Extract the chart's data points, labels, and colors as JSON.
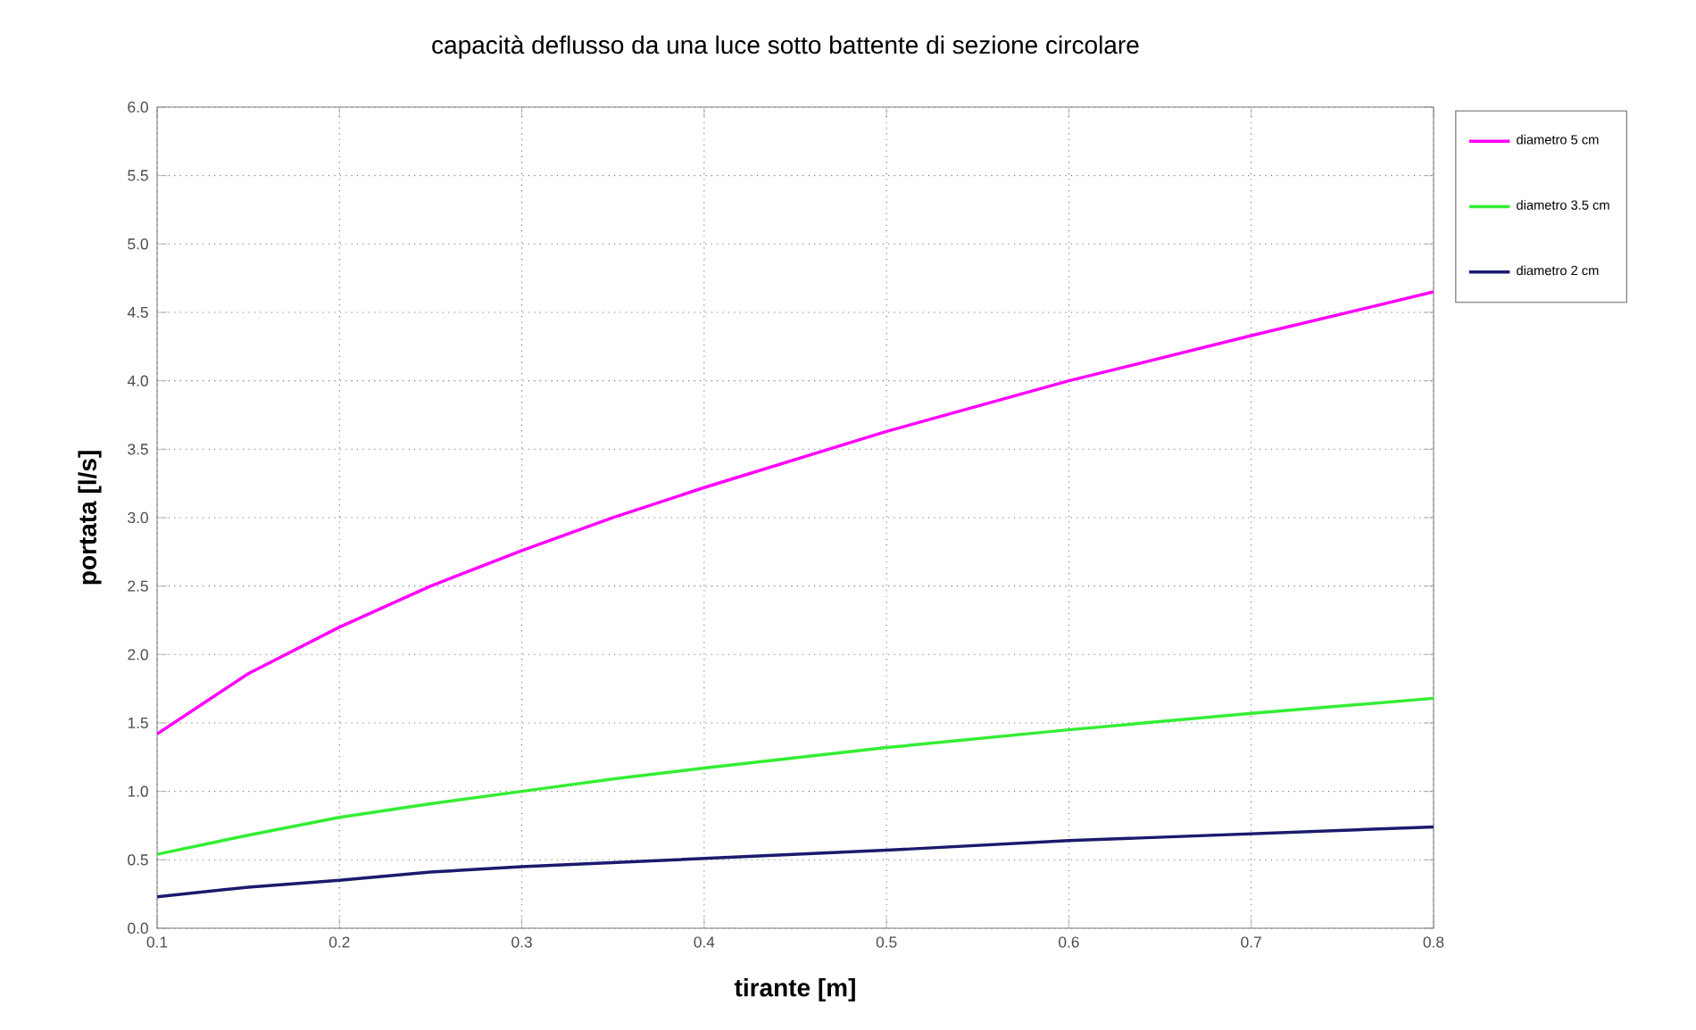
{
  "chart_data": {
    "type": "line",
    "title": "capacità deflusso da una luce sotto battente di sezione circolare",
    "xlabel": "tirante [m]",
    "ylabel": "portata [l/s]",
    "x": [
      0.1,
      0.15,
      0.2,
      0.25,
      0.3,
      0.35,
      0.4,
      0.5,
      0.6,
      0.7,
      0.8
    ],
    "series": [
      {
        "name": "diametro 5 cm",
        "color": "#ff00ff",
        "values": [
          1.42,
          1.86,
          2.2,
          2.5,
          2.76,
          3.0,
          3.22,
          3.63,
          4.0,
          4.33,
          4.65
        ]
      },
      {
        "name": "diametro 3.5 cm",
        "color": "#33ee33",
        "values": [
          0.54,
          0.68,
          0.81,
          0.91,
          1.0,
          1.09,
          1.17,
          1.32,
          1.45,
          1.57,
          1.68
        ]
      },
      {
        "name": "diametro 2 cm",
        "color": "#1a1a6e",
        "values": [
          0.23,
          0.3,
          0.35,
          0.41,
          0.45,
          0.48,
          0.51,
          0.57,
          0.64,
          0.69,
          0.74
        ]
      }
    ],
    "xlim": [
      0.1,
      0.8
    ],
    "xticks": [
      0.1,
      0.2,
      0.3,
      0.4,
      0.5,
      0.6,
      0.7,
      0.8
    ],
    "ylim": [
      0,
      6
    ],
    "yticks": [
      {
        "value": 0,
        "label": "0.0"
      },
      {
        "value": 0.5,
        "label": "0.5"
      },
      {
        "value": 1,
        "label": "1.0"
      },
      {
        "value": 1.5,
        "label": "1.5"
      },
      {
        "value": 2,
        "label": "2.0"
      },
      {
        "value": 2.5,
        "label": "2.5"
      },
      {
        "value": 3,
        "label": "3.0"
      },
      {
        "value": 3.5,
        "label": "3.5"
      },
      {
        "value": 4,
        "label": "4.0"
      },
      {
        "value": 4.5,
        "label": "4.5"
      },
      {
        "value": 5,
        "label": "5.0"
      },
      {
        "value": 5.5,
        "label": "5.5"
      },
      {
        "value": 6,
        "label": "6.0"
      }
    ],
    "grid": true,
    "legend": "top right",
    "marker": "none",
    "line_style": "solid"
  }
}
